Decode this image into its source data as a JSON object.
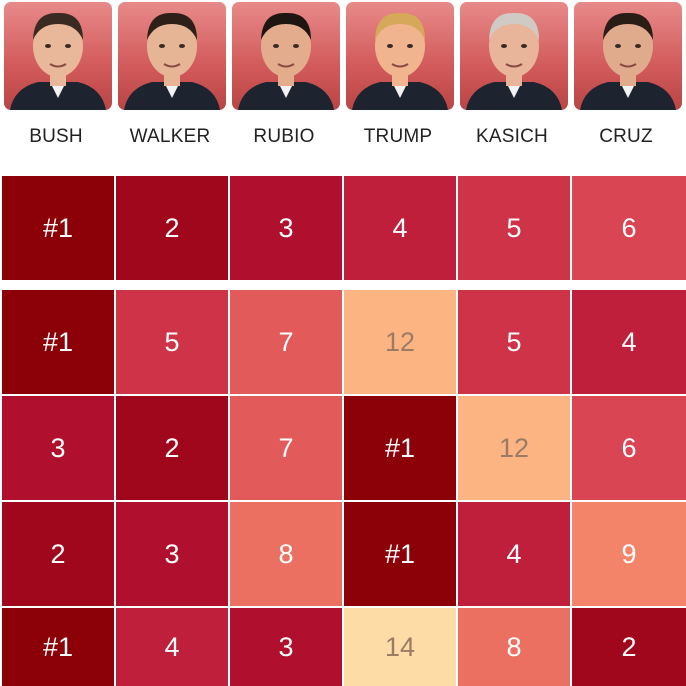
{
  "candidates": [
    {
      "name": "BUSH",
      "photo_icon": "bush-portrait-icon"
    },
    {
      "name": "WALKER",
      "photo_icon": "walker-portrait-icon"
    },
    {
      "name": "RUBIO",
      "photo_icon": "rubio-portrait-icon"
    },
    {
      "name": "TRUMP",
      "photo_icon": "trump-portrait-icon"
    },
    {
      "name": "KASICH",
      "photo_icon": "kasich-portrait-icon"
    },
    {
      "name": "CRUZ",
      "photo_icon": "cruz-portrait-icon"
    }
  ],
  "chart_data": {
    "type": "heatmap",
    "categories": [
      "BUSH",
      "WALKER",
      "RUBIO",
      "TRUMP",
      "KASICH",
      "CRUZ"
    ],
    "rows": [
      {
        "values": [
          1,
          2,
          3,
          4,
          5,
          6
        ],
        "labels": [
          "#1",
          "2",
          "3",
          "4",
          "5",
          "6"
        ]
      },
      {
        "values": [
          1,
          5,
          7,
          12,
          5,
          4
        ],
        "labels": [
          "#1",
          "5",
          "7",
          "12",
          "5",
          "4"
        ]
      },
      {
        "values": [
          3,
          2,
          7,
          1,
          12,
          6
        ],
        "labels": [
          "3",
          "2",
          "7",
          "#1",
          "12",
          "6"
        ]
      },
      {
        "values": [
          2,
          3,
          8,
          1,
          4,
          9
        ],
        "labels": [
          "2",
          "3",
          "8",
          "#1",
          "4",
          "9"
        ]
      },
      {
        "values": [
          1,
          4,
          3,
          14,
          8,
          2
        ],
        "labels": [
          "#1",
          "4",
          "3",
          "14",
          "8",
          "2"
        ]
      }
    ],
    "color_scale": {
      "1": "#8c0008",
      "2": "#a0061c",
      "3": "#b0102d",
      "4": "#c01f3c",
      "5": "#cf3347",
      "6": "#da4554",
      "7": "#e35a5a",
      "8": "#ec7062",
      "9": "#f3846a",
      "12": "#fdb483",
      "14": "#fddca6"
    }
  }
}
